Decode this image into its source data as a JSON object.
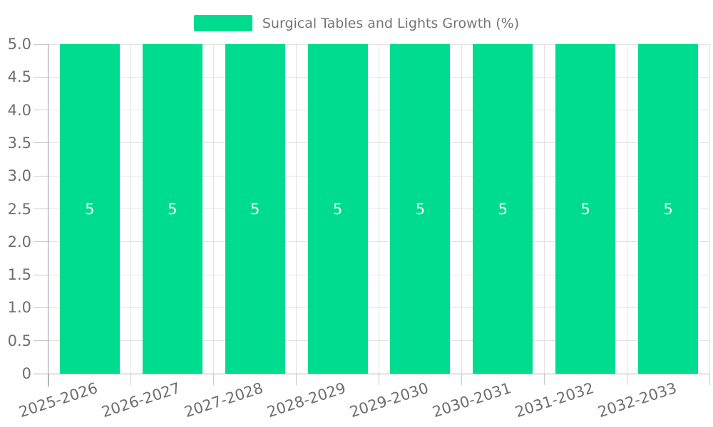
{
  "legend": {
    "label": "Surgical Tables and Lights Growth (%)"
  },
  "colors": {
    "bar": "#00dc8f",
    "bar_value_label": "#ffffff",
    "axis_label": "#6e6e6e",
    "legend_text": "#757575",
    "gridline": "#e3e3e3"
  },
  "chart_data": {
    "type": "bar",
    "title": "Surgical Tables and Lights Growth (%)",
    "categories": [
      "2025-2026",
      "2026-2027",
      "2027-2028",
      "2028-2029",
      "2029-2030",
      "2030-2031",
      "2031-2032",
      "2032-2033"
    ],
    "values": [
      5,
      5,
      5,
      5,
      5,
      5,
      5,
      5
    ],
    "bar_labels": [
      "5",
      "5",
      "5",
      "5",
      "5",
      "5",
      "5",
      "5"
    ],
    "xlabel": "",
    "ylabel": "",
    "ylim": [
      0,
      5
    ],
    "ytick_values": [
      0,
      0.5,
      1,
      1.5,
      2,
      2.5,
      3,
      3.5,
      4,
      4.5,
      5
    ],
    "ytick_labels": [
      "0",
      "0.5",
      "1.0",
      "1.5",
      "2.0",
      "2.5",
      "3.0",
      "3.5",
      "4.0",
      "4.5",
      "5.0"
    ],
    "grid": true,
    "legend_position": "top-center",
    "bar_color": "#00dc8f",
    "xtick_rotation_deg": -18
  }
}
